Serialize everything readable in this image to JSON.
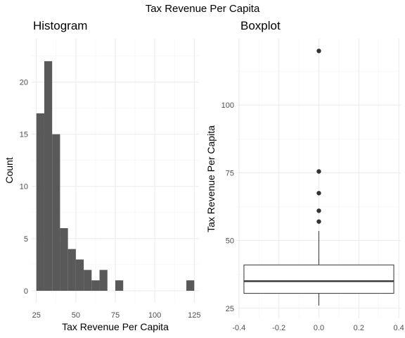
{
  "title": "Tax Revenue Per Capita",
  "chart_data": [
    {
      "type": "histogram",
      "title": "Histogram",
      "xlabel": "Tax Revenue Per Capita",
      "ylabel": "Count",
      "bin_width": 5,
      "bins": [
        {
          "x0": 25,
          "x1": 30,
          "count": 17
        },
        {
          "x0": 30,
          "x1": 35,
          "count": 22
        },
        {
          "x0": 35,
          "x1": 40,
          "count": 15
        },
        {
          "x0": 40,
          "x1": 45,
          "count": 6
        },
        {
          "x0": 45,
          "x1": 50,
          "count": 4
        },
        {
          "x0": 50,
          "x1": 55,
          "count": 3
        },
        {
          "x0": 55,
          "x1": 60,
          "count": 2
        },
        {
          "x0": 60,
          "x1": 65,
          "count": 1
        },
        {
          "x0": 65,
          "x1": 70,
          "count": 2
        },
        {
          "x0": 70,
          "x1": 75,
          "count": 0
        },
        {
          "x0": 75,
          "x1": 80,
          "count": 1
        },
        {
          "x0": 80,
          "x1": 85,
          "count": 0
        },
        {
          "x0": 85,
          "x1": 90,
          "count": 0
        },
        {
          "x0": 90,
          "x1": 95,
          "count": 0
        },
        {
          "x0": 95,
          "x1": 100,
          "count": 0
        },
        {
          "x0": 100,
          "x1": 105,
          "count": 0
        },
        {
          "x0": 105,
          "x1": 110,
          "count": 0
        },
        {
          "x0": 110,
          "x1": 115,
          "count": 0
        },
        {
          "x0": 115,
          "x1": 120,
          "count": 0
        },
        {
          "x0": 120,
          "x1": 125,
          "count": 1
        }
      ],
      "xlim": [
        22,
        128
      ],
      "ylim": [
        -1.15,
        24.15
      ],
      "xticks": [
        25,
        50,
        75,
        100,
        125
      ],
      "yticks": [
        0,
        5,
        10,
        15,
        20
      ],
      "bar_color": "#595959",
      "grid": true
    },
    {
      "type": "boxplot",
      "title": "Boxplot",
      "xlabel": "",
      "ylabel": "Tax Revenue Per Capita",
      "box": {
        "min": 26,
        "q1": 30.5,
        "median": 35,
        "q3": 41,
        "max": 53.5
      },
      "box_x_range": [
        -0.375,
        0.375
      ],
      "outliers": [
        57,
        61,
        67.5,
        75.5,
        120
      ],
      "xlim": [
        -0.41,
        0.41
      ],
      "ylim": [
        21.3,
        124.5
      ],
      "xticks": [
        -0.4,
        -0.2,
        0.0,
        0.2,
        0.4
      ],
      "xtick_labels": [
        "-0.4",
        "-0.2",
        "0.0",
        "0.2",
        "0.4"
      ],
      "yticks": [
        25,
        50,
        75,
        100
      ],
      "line_color": "#333333",
      "point_color": "#333333",
      "grid": true
    }
  ]
}
